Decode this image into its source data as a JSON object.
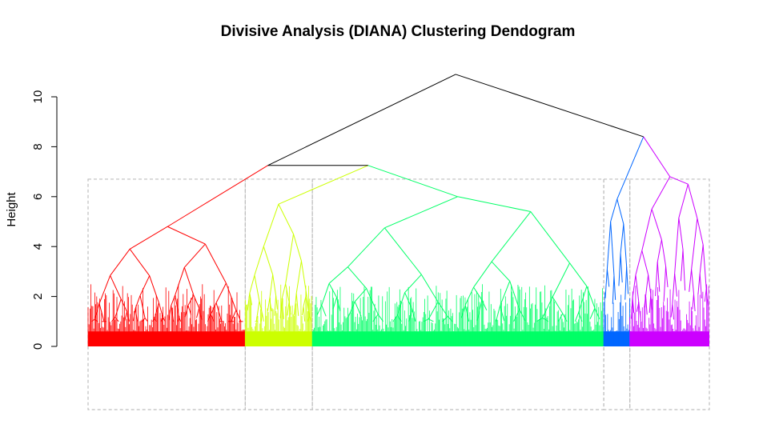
{
  "chart_data": {
    "type": "dendrogram",
    "title": "Divisive Analysis (DIANA) Clustering Dendogram",
    "xlabel": "",
    "ylabel": "Height",
    "ylim": [
      0,
      11
    ],
    "yticks": [
      0,
      2,
      4,
      6,
      8,
      10
    ],
    "cut_height": 6.7,
    "grid": false,
    "root": {
      "height": 10.9
    },
    "merges": [
      {
        "id": "red",
        "label": "",
        "height": 4.8
      },
      {
        "id": "yellow",
        "label": "",
        "height": 5.7
      },
      {
        "id": "green",
        "label": "",
        "height": 6.0
      },
      {
        "id": "blue",
        "label": "",
        "height": 5.9
      },
      {
        "id": "purple",
        "label": "",
        "height": 6.8
      },
      {
        "id": "yellow+green",
        "label": "",
        "height": 7.25
      },
      {
        "id": "red+(yellow+green)",
        "label": "",
        "height": 7.25
      },
      {
        "id": "blue+purple",
        "label": "",
        "height": 8.4
      }
    ],
    "clusters": [
      {
        "id": "red",
        "color": "#ff0000",
        "top_height": 4.8,
        "left_height": 3.9,
        "right_height": 4.1,
        "share": 0.253
      },
      {
        "id": "yellow",
        "color": "#ccff00",
        "top_height": 5.7,
        "left_height": 4.0,
        "right_height": 4.5,
        "share": 0.108
      },
      {
        "id": "green",
        "color": "#00ff66",
        "top_height": 6.0,
        "left_height": 4.75,
        "right_height": 5.4,
        "share": 0.469
      },
      {
        "id": "blue",
        "color": "#0066ff",
        "top_height": 5.9,
        "left_height": 5.0,
        "right_height": 4.9,
        "share": 0.042
      },
      {
        "id": "purple",
        "color": "#cc00ff",
        "top_height": 6.8,
        "left_height": 5.5,
        "right_height": 6.5,
        "share": 0.128
      }
    ],
    "branch_color": "#000000",
    "box_color": "#bebebe"
  }
}
